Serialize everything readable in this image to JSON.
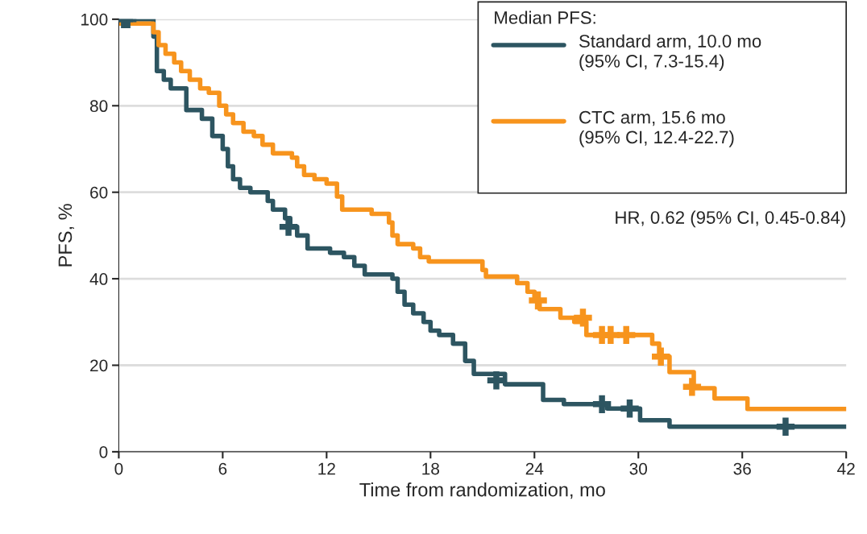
{
  "chart_data": {
    "type": "step",
    "xlabel": "Time from randomization, mo",
    "ylabel": "PFS, %",
    "legend_title": "Median PFS:",
    "xlim": [
      0,
      42
    ],
    "ylim": [
      0,
      100
    ],
    "xticks": [
      0,
      6,
      12,
      18,
      24,
      30,
      36,
      42
    ],
    "yticks": [
      0,
      20,
      40,
      60,
      80,
      100
    ],
    "grid": "y",
    "legend": "top right",
    "line_style": "solid",
    "series": [
      {
        "name": "Standard arm, 10.0 mo\n(95% CI, 7.3-15.4)",
        "color": "#2d5561",
        "x": [
          0,
          2.0,
          2.2,
          2.6,
          3.0,
          3.9,
          4.8,
          5.4,
          6.0,
          6.3,
          6.6,
          7.0,
          7.6,
          8.6,
          8.9,
          9.6,
          9.9,
          10.3,
          10.9,
          12.2,
          13.0,
          13.6,
          14.2,
          15.8,
          16.1,
          16.5,
          17.0,
          17.6,
          18.0,
          18.5,
          19.3,
          20.0,
          20.5,
          22.3,
          24.5,
          25.7,
          28.2,
          30.1,
          31.8,
          42
        ],
        "values": [
          100,
          96,
          88,
          86,
          84,
          79,
          77,
          73,
          70,
          66,
          63,
          61,
          60,
          58,
          56,
          54,
          52,
          50,
          47,
          46,
          45,
          43,
          41,
          40,
          37,
          34,
          32,
          30,
          28,
          27,
          25,
          21,
          18,
          15.6,
          12,
          11,
          10,
          7.3,
          5.8,
          5.8
        ]
      },
      {
        "name": "CTC arm, 15.6 mo\n(95% CI, 12.4-22.7)",
        "color": "#f7941d",
        "x": [
          0,
          2.0,
          2.3,
          2.7,
          3.2,
          3.6,
          4.1,
          4.7,
          5.2,
          5.8,
          6.2,
          6.6,
          7.2,
          7.8,
          8.3,
          8.9,
          10.0,
          10.3,
          10.7,
          11.3,
          12.0,
          12.6,
          12.9,
          14.6,
          15.6,
          15.8,
          16.1,
          17.0,
          17.4,
          17.9,
          21.0,
          21.2,
          23.0,
          23.6,
          24.0,
          24.3,
          25.5,
          26.3,
          27.0,
          30.8,
          31.2,
          31.8,
          33.2,
          34.4,
          36.3,
          42
        ],
        "values": [
          99,
          97,
          94,
          92,
          90,
          88,
          86,
          84,
          83,
          80,
          78,
          76,
          74,
          73,
          71,
          69,
          68,
          66,
          64,
          63,
          62,
          59,
          56,
          55,
          53,
          50,
          48,
          47,
          45,
          44,
          42,
          40.5,
          39,
          37,
          35,
          33,
          31,
          30,
          27,
          25,
          22,
          18.4,
          14.7,
          12.3,
          9.9,
          9.9
        ]
      },
      {
        "color": "#2d5561",
        "type": "scatter",
        "marker": "cross",
        "x": [
          0.3,
          0.5,
          9.8,
          21.8,
          27.9,
          29.5,
          38.5
        ],
        "values": [
          100,
          100,
          52,
          16.5,
          11,
          10,
          5.8
        ]
      },
      {
        "color": "#f7941d",
        "type": "scatter",
        "marker": "cross",
        "x": [
          24.2,
          26.8,
          27.9,
          28.4,
          29.3,
          31.3,
          33.1
        ],
        "values": [
          35,
          31,
          27,
          27,
          27,
          22,
          15
        ]
      }
    ],
    "annotations": [
      "HR, 0.62 (95% CI, 0.45-0.84)"
    ]
  }
}
